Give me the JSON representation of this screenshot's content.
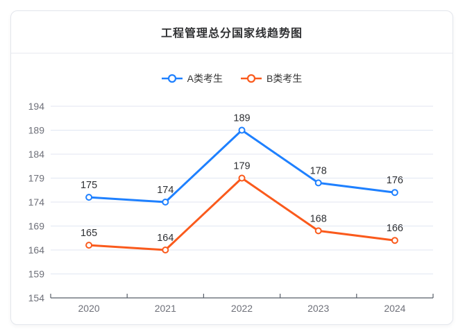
{
  "card": {
    "title": "工程管理总分国家线趋势图"
  },
  "legend": {
    "items": [
      {
        "label": "A类考生",
        "color": "#1e80ff"
      },
      {
        "label": "B类考生",
        "color": "#fa5a1c"
      }
    ]
  },
  "chart_data": {
    "type": "line",
    "title": "工程管理总分国家线趋势图",
    "categories": [
      "2020",
      "2021",
      "2022",
      "2023",
      "2024"
    ],
    "series": [
      {
        "name": "A类考生",
        "color": "#1e80ff",
        "values": [
          175,
          174,
          189,
          178,
          176
        ]
      },
      {
        "name": "B类考生",
        "color": "#fa5a1c",
        "values": [
          165,
          164,
          179,
          168,
          166
        ]
      }
    ],
    "ylim": [
      154,
      194
    ],
    "yticks": [
      154,
      159,
      164,
      169,
      174,
      179,
      184,
      189,
      194
    ],
    "xlabel": "",
    "ylabel": "",
    "grid": true,
    "legend_position": "top",
    "data_labels": true,
    "marker": "hollow-circle"
  },
  "colors": {
    "grid_line": "#e0e6f2",
    "axis_line": "#565d68",
    "axis_tick_label": "#6e7079",
    "data_label": "#2d2f33",
    "card_border": "#e3e6ec",
    "background": "#ffffff"
  }
}
